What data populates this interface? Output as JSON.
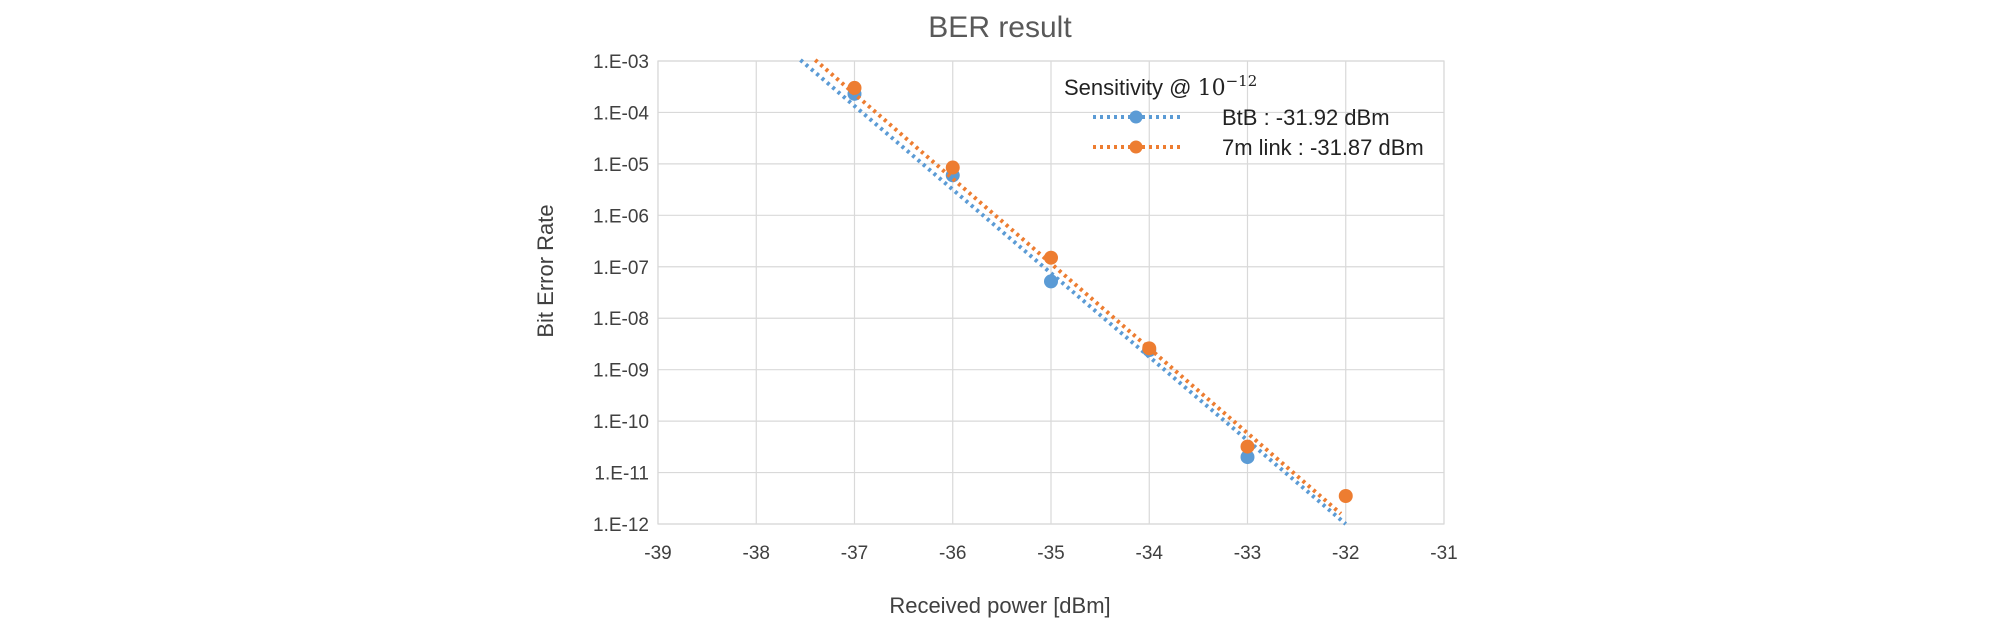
{
  "chart_data": {
    "type": "scatter",
    "title": "BER result",
    "xlabel": "Received power [dBm]",
    "ylabel": "Bit Error Rate",
    "xlim": [
      -39,
      -31
    ],
    "ylim_exponent": [
      -12,
      -3
    ],
    "y_scale": "log10",
    "x_ticks": [
      "-39",
      "-38",
      "-37",
      "-36",
      "-35",
      "-34",
      "-33",
      "-32",
      "-31"
    ],
    "y_ticks": [
      "1.E-12",
      "1.E-11",
      "1.E-10",
      "1.E-09",
      "1.E-08",
      "1.E-07",
      "1.E-06",
      "1.E-05",
      "1.E-04",
      "1.E-03"
    ],
    "grid": true,
    "legend": {
      "title_prefix": "Sensitivity @ ",
      "title_base": "10",
      "title_exponent": "−12",
      "placement": "top-right"
    },
    "series": [
      {
        "name": "BtB",
        "legend_label": "BtB : -31.92 dBm",
        "color": "#5B9BD5",
        "x": [
          -37,
          -36,
          -35,
          -34,
          -33
        ],
        "y": [
          0.00023,
          6e-06,
          5.2e-08,
          2.4e-09,
          2e-11
        ],
        "trendline": {
          "style": "dotted",
          "x_range": [
            -37.55,
            -32.0
          ],
          "log10_y_range": [
            -2.98,
            -12.0
          ]
        }
      },
      {
        "name": "7m link",
        "legend_label": "7m link : -31.87 dBm",
        "color": "#ED7D31",
        "x": [
          -37,
          -36,
          -35,
          -34,
          -33,
          -32
        ],
        "y": [
          0.0003,
          8.5e-06,
          1.5e-07,
          2.6e-09,
          3.2e-11,
          3.5e-12
        ],
        "trendline": {
          "style": "dotted",
          "x_range": [
            -37.4,
            -32.05
          ],
          "log10_y_range": [
            -2.98,
            -11.8
          ]
        }
      }
    ]
  }
}
